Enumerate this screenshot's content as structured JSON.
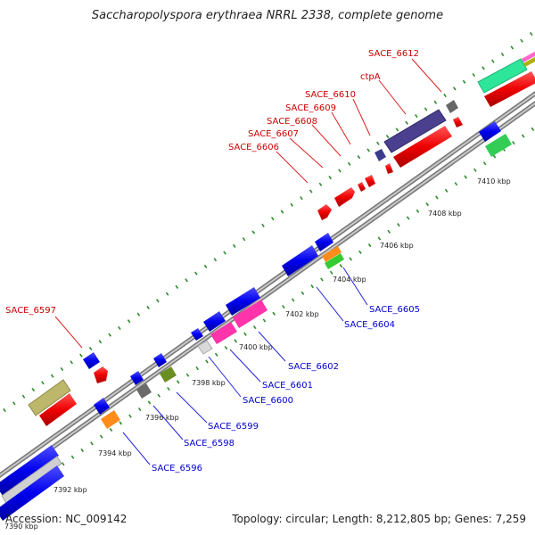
{
  "title": "Saccharopolyspora erythraea NRRL 2338, complete genome",
  "accession": "Accession: NC_009142",
  "summary": "Topology: circular; Length: 8,212,805 bp; Genes: 7,259",
  "colors": {
    "backbone": "#8c8c8c",
    "tick": "#2e8b2e",
    "label_forward": "#cc0000",
    "label_reverse": "#0000cc",
    "callout_forward": "#dd2222",
    "callout_reverse": "#2222dd"
  },
  "kbp_ticks": [
    "7390 kbp",
    "7392 kbp",
    "7394 kbp",
    "7396 kbp",
    "7398 kbp",
    "7400 kbp",
    "7402 kbp",
    "7404 kbp",
    "7406 kbp",
    "7408 kbp",
    "7410 kbp"
  ],
  "genes_forward": [
    {
      "name": "SACE_6597",
      "labeled": true
    },
    {
      "name": "SACE_6606",
      "labeled": true
    },
    {
      "name": "SACE_6607",
      "labeled": true
    },
    {
      "name": "SACE_6608",
      "labeled": true
    },
    {
      "name": "SACE_6609",
      "labeled": true
    },
    {
      "name": "SACE_6610",
      "labeled": true
    },
    {
      "name": "ctpA",
      "labeled": true
    },
    {
      "name": "SACE_6612",
      "labeled": true
    }
  ],
  "genes_reverse": [
    {
      "name": "SACE_6596"
    },
    {
      "name": "SACE_6598"
    },
    {
      "name": "SACE_6599"
    },
    {
      "name": "SACE_6600"
    },
    {
      "name": "SACE_6601"
    },
    {
      "name": "SACE_6602"
    },
    {
      "name": "SACE_6604"
    },
    {
      "name": "SACE_6605"
    }
  ]
}
